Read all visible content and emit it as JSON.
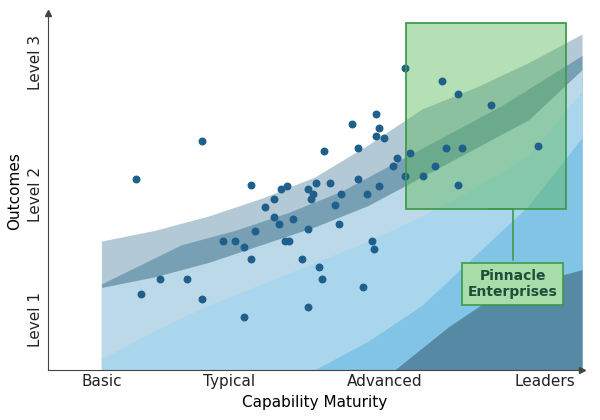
{
  "chart_data": {
    "type": "scatter",
    "xlabel": "Capability Maturity",
    "ylabel": "Outcomes",
    "xlim": [
      0,
      10
    ],
    "ylim": [
      0,
      10
    ],
    "xticks": [
      {
        "value": 1,
        "label": "Basic"
      },
      {
        "value": 3.4,
        "label": "Typical"
      },
      {
        "value": 6.3,
        "label": "Advanced"
      },
      {
        "value": 9.3,
        "label": "Leaders"
      }
    ],
    "yticks": [
      {
        "value": 1.4,
        "label": "Level 1"
      },
      {
        "value": 4.9,
        "label": "Level 2"
      },
      {
        "value": 8.6,
        "label": "Level 3"
      }
    ],
    "color": "#1f5f8b",
    "x": [
      1.64,
      2.88,
      1.75,
      2.1,
      2.6,
      2.88,
      3.67,
      3.27,
      3.5,
      3.67,
      3.81,
      3.88,
      4.06,
      3.81,
      4.23,
      4.23,
      4.32,
      4.37,
      4.48,
      4.44,
      4.51,
      4.58,
      4.76,
      4.86,
      4.93,
      4.97,
      5.02,
      4.86,
      4.86,
      5.07,
      5.14,
      5.17,
      5.28,
      5.37,
      5.45,
      5.49,
      5.7,
      5.8,
      5.8,
      5.89,
      5.98,
      6.07,
      6.1,
      6.15,
      6.19,
      6.29,
      6.15,
      6.47,
      6.54,
      6.68,
      6.68,
      6.77,
      7.03,
      7.24,
      7.38,
      7.45,
      7.67,
      7.67,
      7.76,
      8.3,
      9.17,
      6.19
    ],
    "values": [
      5.35,
      6.39,
      2.11,
      2.54,
      2.54,
      1.97,
      1.46,
      3.61,
      3.61,
      3.44,
      3.1,
      3.89,
      4.56,
      5.18,
      4.28,
      4.79,
      4.08,
      5.07,
      5.13,
      3.61,
      3.61,
      4.23,
      3.1,
      5.07,
      4.79,
      4.93,
      5.24,
      3.94,
      1.75,
      2.87,
      2.54,
      6.11,
      5.24,
      4.62,
      4.08,
      4.93,
      6.87,
      6.2,
      5.35,
      2.31,
      4.93,
      3.61,
      3.38,
      6.54,
      5.13,
      6.48,
      7.15,
      5.69,
      5.92,
      8.45,
      5.41,
      6.06,
      5.41,
      5.69,
      8.08,
      6.2,
      7.72,
      5.18,
      6.2,
      7.41,
      6.25,
      6.76
    ],
    "areas": [
      {
        "color": "#a7c0cf",
        "x": [
          1,
          2,
          3,
          4,
          5,
          6,
          7,
          8,
          9,
          10
        ],
        "values": [
          3.6,
          3.9,
          4.3,
          4.8,
          5.4,
          6.3,
          7.3,
          7.9,
          8.6,
          9.4
        ]
      },
      {
        "color": "#6e99b0",
        "x": [
          1,
          2.5,
          3.5,
          4.5,
          5.5,
          6.5,
          7.5,
          8.5,
          10
        ],
        "values": [
          2.4,
          3.5,
          3.9,
          4.4,
          5.0,
          5.8,
          6.6,
          7.4,
          8.8
        ]
      },
      {
        "color": "#c7e4f2",
        "x": [
          1,
          2,
          3,
          4,
          5,
          6,
          7,
          8,
          9,
          10
        ],
        "values": [
          2.3,
          2.6,
          3.0,
          3.5,
          4.0,
          4.6,
          5.4,
          6.2,
          7.0,
          8.4
        ]
      },
      {
        "color": "#a6d6ee",
        "x": [
          1,
          2,
          3,
          4,
          5,
          6,
          7,
          8,
          9,
          10
        ],
        "values": [
          0.3,
          1.1,
          1.8,
          2.4,
          3.0,
          3.6,
          4.3,
          5.1,
          6.0,
          7.8
        ]
      },
      {
        "color": "#7cc1e4",
        "x": [
          5,
          6,
          7,
          8,
          9,
          10
        ],
        "values": [
          0,
          0.8,
          1.8,
          3.2,
          4.6,
          6.5
        ]
      },
      {
        "color": "#4e7f99",
        "x": [
          6.5,
          7.5,
          8.5,
          9.5,
          10
        ],
        "values": [
          0,
          1.2,
          2.2,
          2.6,
          2.8
        ]
      }
    ],
    "highlight": {
      "label": "Pinnacle\nEnterprises",
      "x": [
        6.7,
        9.7
      ],
      "y": [
        4.5,
        9.7
      ],
      "color": "#5cb85c"
    }
  }
}
